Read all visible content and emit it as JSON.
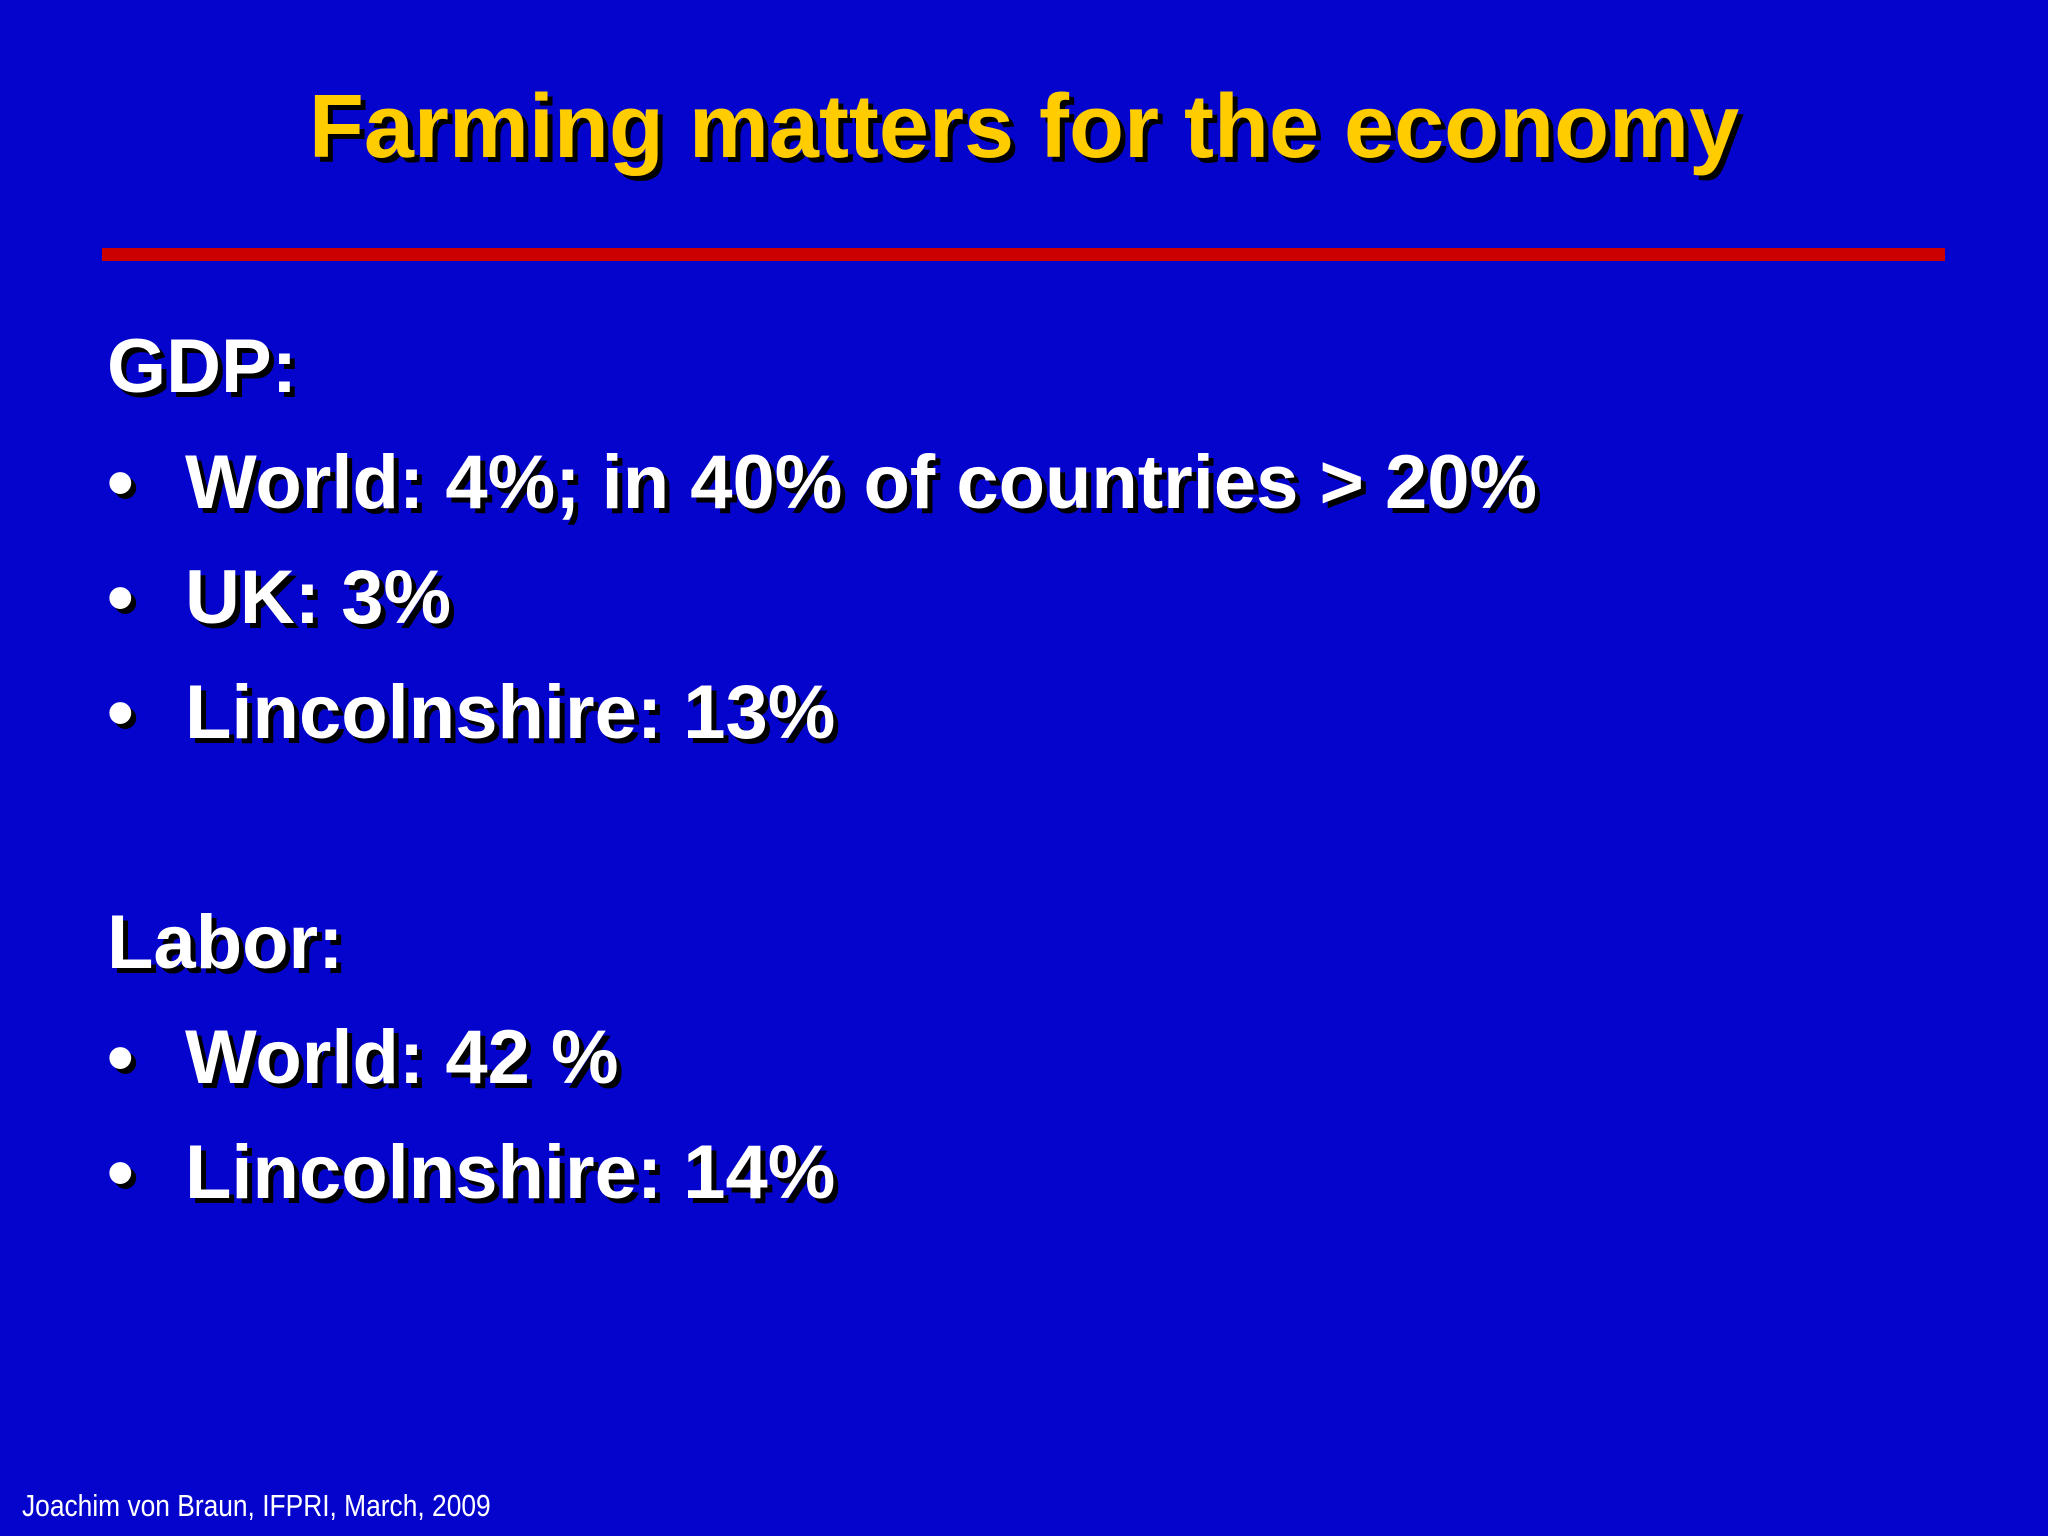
{
  "slide": {
    "title": "Farming matters for the economy",
    "sections": [
      {
        "heading": "GDP:",
        "bullets": [
          "World: 4%; in 40% of countries > 20%",
          "UK: 3%",
          "Lincolnshire: 13%"
        ]
      },
      {
        "heading": "Labor:",
        "bullets": [
          "World: 42 %",
          "Lincolnshire: 14%"
        ]
      }
    ],
    "bullet_symbol": "•",
    "footer": "Joachim von Braun, IFPRI, March, 2009"
  },
  "colors": {
    "background": "#0404cc",
    "title": "#ffcc00",
    "rule": "#cc0000",
    "text": "#ffffff"
  }
}
